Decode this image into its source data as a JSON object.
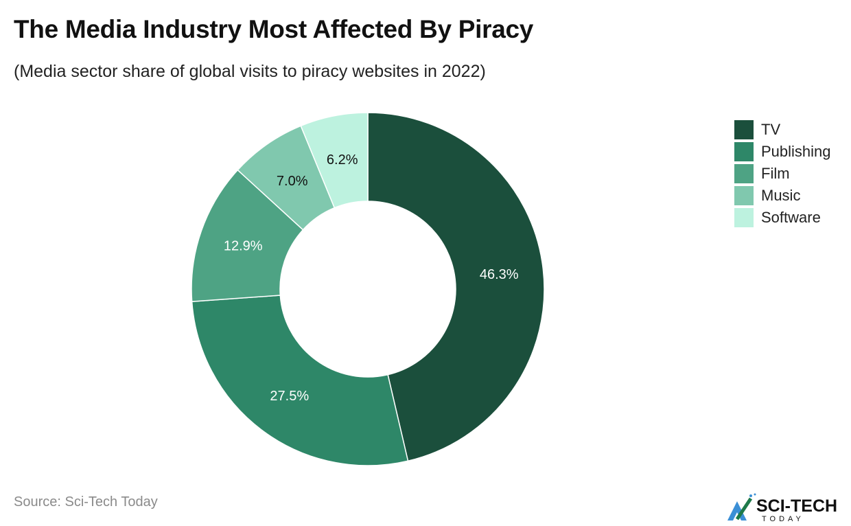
{
  "chart_data": {
    "type": "pie",
    "donut": true,
    "title": "The Media Industry Most Affected By Piracy",
    "subtitle": "(Media sector share of global visits to piracy websites in 2022)",
    "categories": [
      "TV",
      "Publishing",
      "Film",
      "Music",
      "Software"
    ],
    "values": [
      46.3,
      27.5,
      12.9,
      7.0,
      6.2
    ],
    "labels": [
      "46.3%",
      "27.5%",
      "12.9%",
      "7.0%",
      "6.2%"
    ],
    "colors": [
      "#1b4f3c",
      "#2e8768",
      "#4ea384",
      "#80c8ae",
      "#bdf2df"
    ],
    "label_colors": [
      "#ffffff",
      "#ffffff",
      "#ffffff",
      "#111111",
      "#111111"
    ],
    "legend_position": "top-right"
  },
  "source": "Source: Sci-Tech Today",
  "logo": {
    "text": "SCI-TECH",
    "subtext": "TODAY"
  }
}
